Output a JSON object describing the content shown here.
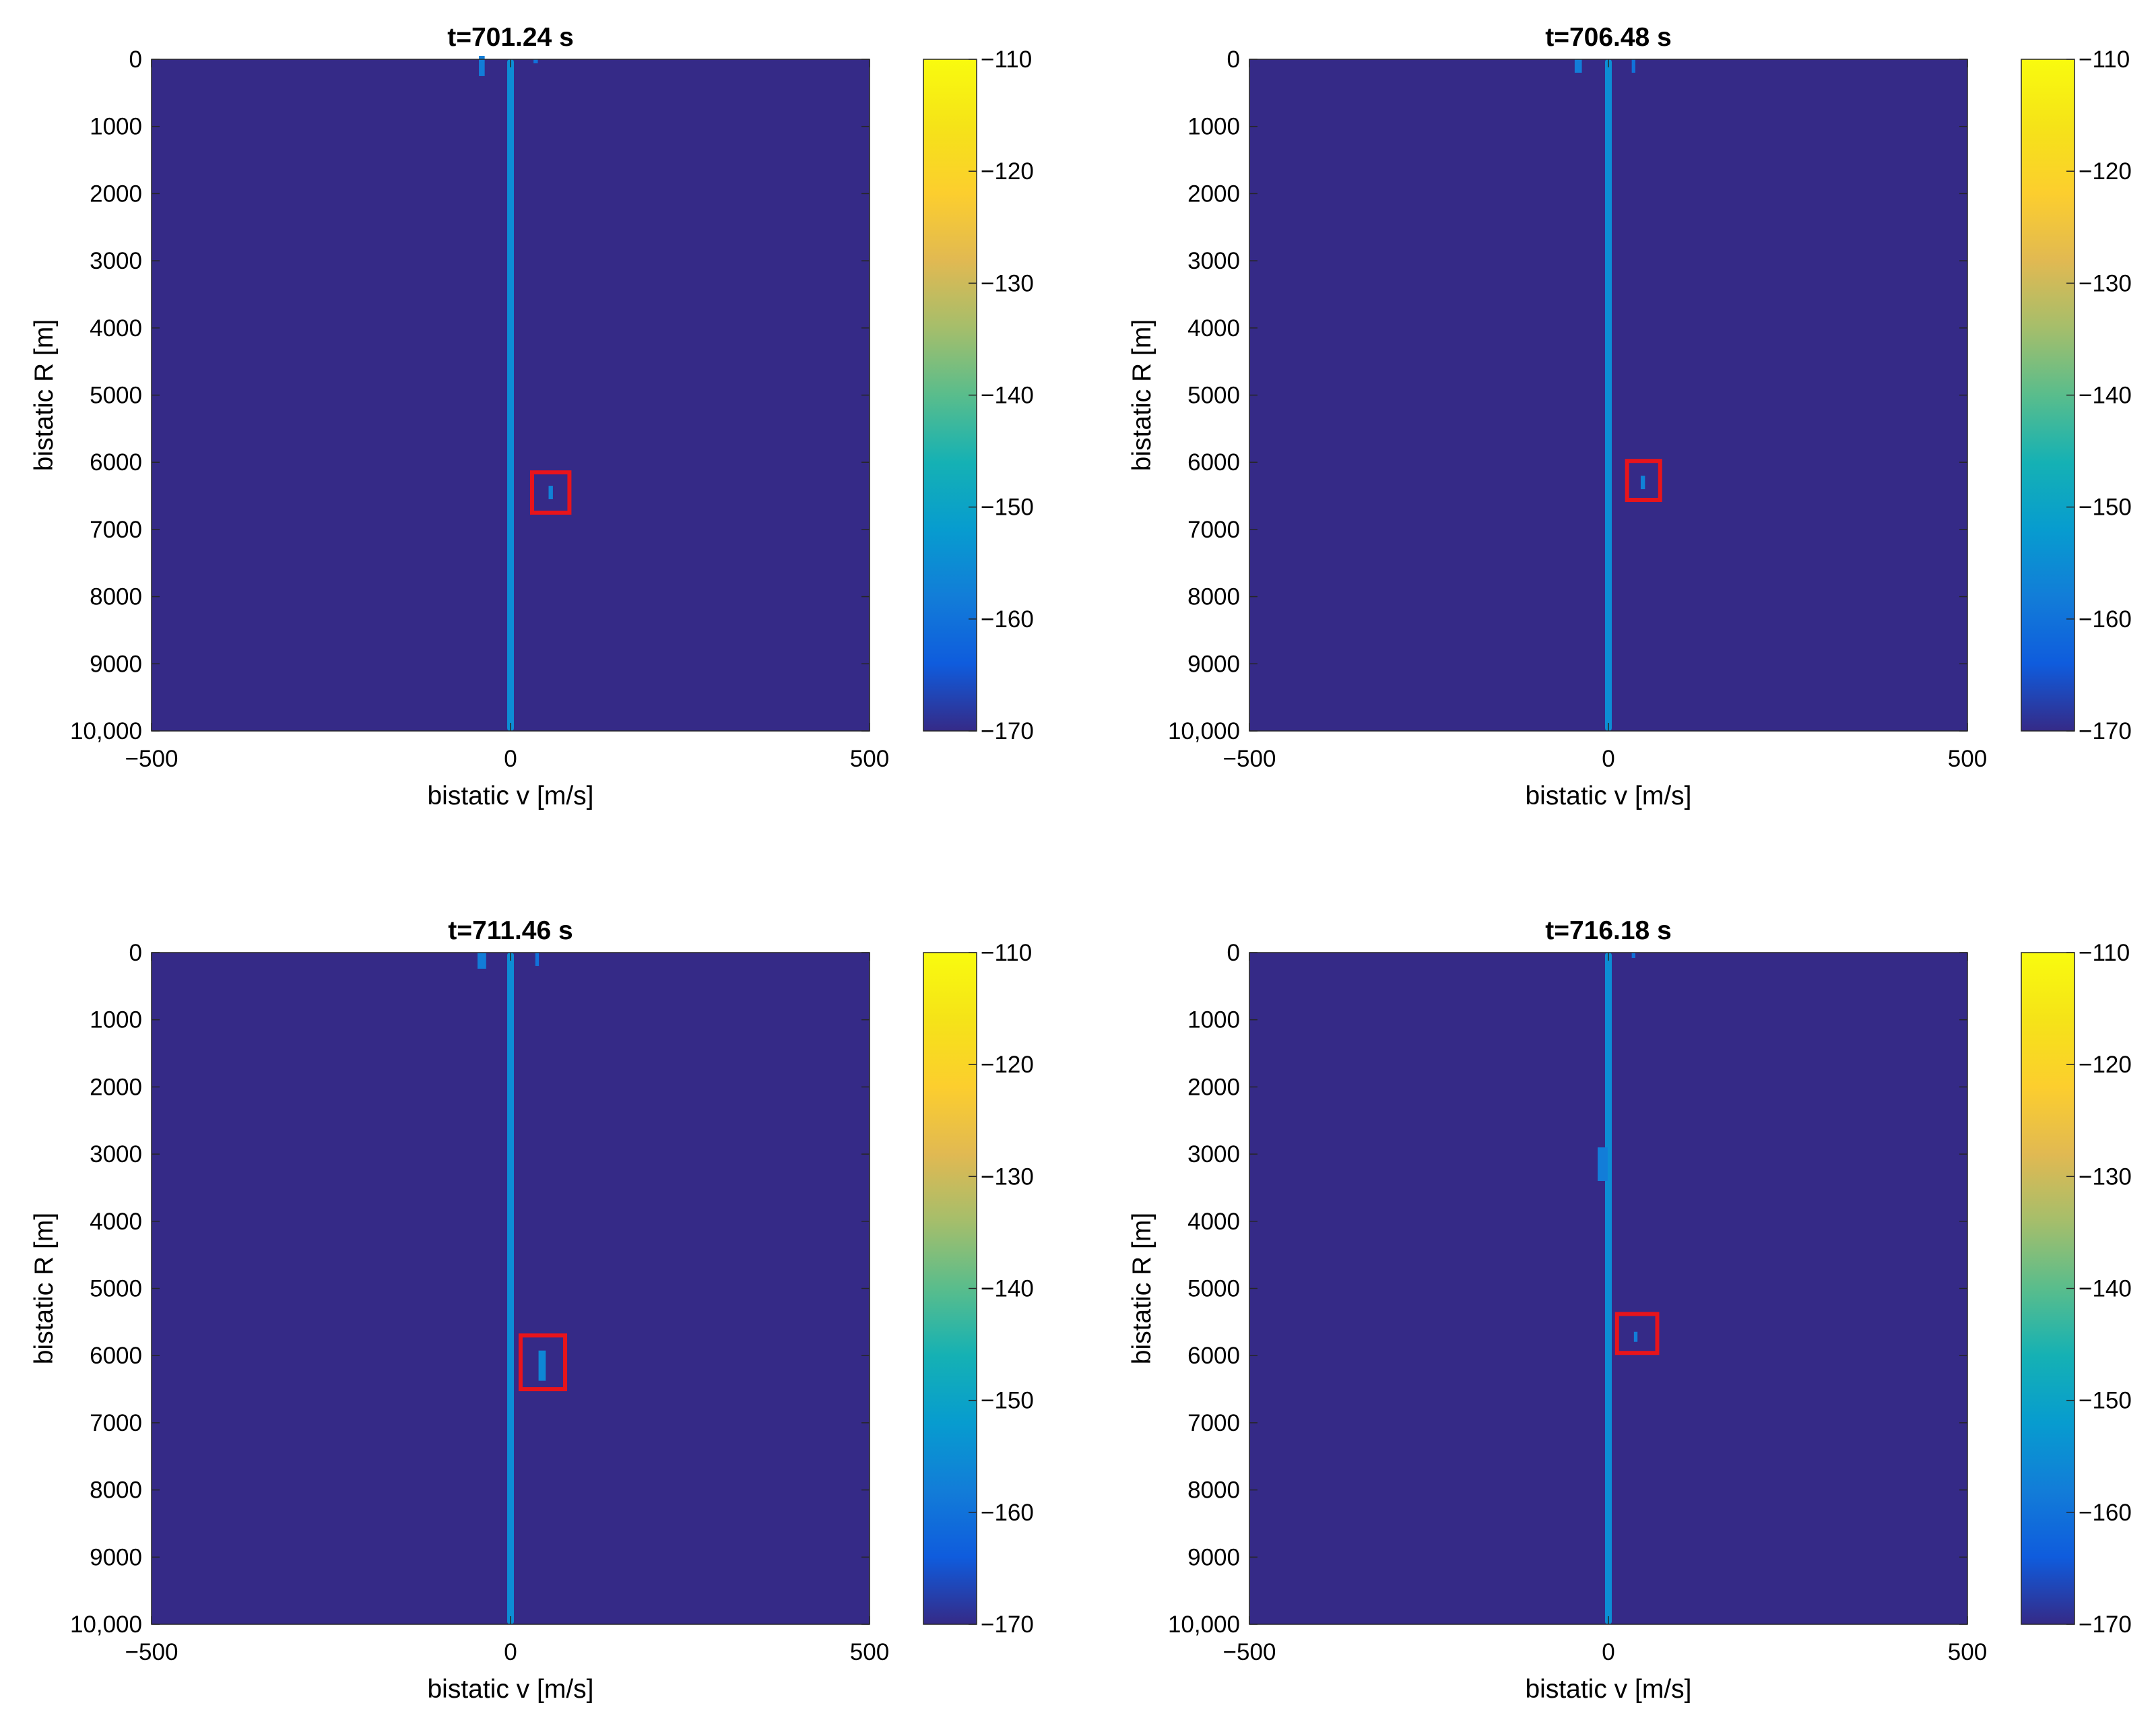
{
  "chart_data": [
    {
      "type": "heatmap",
      "title": "t=701.24 s",
      "xlabel": "bistatic v [m/s]",
      "ylabel": "bistatic R [m]",
      "xlim": [
        -500,
        500
      ],
      "ylim": [
        0,
        10000
      ],
      "y_reversed": true,
      "xticks": [
        -500,
        0,
        500
      ],
      "xtick_labels": [
        "−500",
        "0",
        "500"
      ],
      "yticks": [
        0,
        1000,
        2000,
        3000,
        4000,
        5000,
        6000,
        7000,
        8000,
        9000,
        10000
      ],
      "ytick_labels": [
        "0",
        "1000",
        "2000",
        "3000",
        "4000",
        "5000",
        "6000",
        "7000",
        "8000",
        "9000",
        "10,000"
      ],
      "colorbar": {
        "limits": [
          -170,
          -110
        ],
        "ticks": [
          -110,
          -120,
          -130,
          -140,
          -150,
          -160,
          -170
        ],
        "tick_labels": [
          "−110",
          "−120",
          "−130",
          "−140",
          "−150",
          "−160",
          "−170"
        ]
      },
      "background_level": -170,
      "clutter_ridge": {
        "v": 0,
        "r_range": [
          0,
          10000
        ],
        "level": -155
      },
      "features": [
        {
          "v": -40,
          "r": 100,
          "dr": 300,
          "dv": 8,
          "level": -158
        },
        {
          "v": 35,
          "r": 30,
          "dr": 60,
          "dv": 6,
          "level": -160
        }
      ],
      "target": {
        "v": 56,
        "r": 6450,
        "dv": 6,
        "dr": 200,
        "level": -157
      },
      "target_box": {
        "v_range": [
          30,
          82
        ],
        "r_range": [
          6150,
          6750
        ],
        "color": "#e8141b"
      }
    },
    {
      "type": "heatmap",
      "title": "t=706.48 s",
      "xlabel": "bistatic v [m/s]",
      "ylabel": "bistatic R [m]",
      "xlim": [
        -500,
        500
      ],
      "ylim": [
        0,
        10000
      ],
      "y_reversed": true,
      "xticks": [
        -500,
        0,
        500
      ],
      "xtick_labels": [
        "−500",
        "0",
        "500"
      ],
      "yticks": [
        0,
        1000,
        2000,
        3000,
        4000,
        5000,
        6000,
        7000,
        8000,
        9000,
        10000
      ],
      "ytick_labels": [
        "0",
        "1000",
        "2000",
        "3000",
        "4000",
        "5000",
        "6000",
        "7000",
        "8000",
        "9000",
        "10,000"
      ],
      "colorbar": {
        "limits": [
          -170,
          -110
        ],
        "ticks": [
          -110,
          -120,
          -130,
          -140,
          -150,
          -160,
          -170
        ],
        "tick_labels": [
          "−110",
          "−120",
          "−130",
          "−140",
          "−150",
          "−160",
          "−170"
        ]
      },
      "background_level": -170,
      "clutter_ridge": {
        "v": 0,
        "r_range": [
          0,
          10000
        ],
        "level": -155
      },
      "features": [
        {
          "v": -42,
          "r": 100,
          "dr": 200,
          "dv": 10,
          "level": -158
        },
        {
          "v": 35,
          "r": 100,
          "dr": 200,
          "dv": 5,
          "level": -160
        }
      ],
      "target": {
        "v": 48,
        "r": 6300,
        "dv": 6,
        "dr": 200,
        "level": -157
      },
      "target_box": {
        "v_range": [
          26,
          72
        ],
        "r_range": [
          5980,
          6560
        ],
        "color": "#e8141b"
      }
    },
    {
      "type": "heatmap",
      "title": "t=711.46 s",
      "xlabel": "bistatic v [m/s]",
      "ylabel": "bistatic R [m]",
      "xlim": [
        -500,
        500
      ],
      "ylim": [
        0,
        10000
      ],
      "y_reversed": true,
      "xticks": [
        -500,
        0,
        500
      ],
      "xtick_labels": [
        "−500",
        "0",
        "500"
      ],
      "yticks": [
        0,
        1000,
        2000,
        3000,
        4000,
        5000,
        6000,
        7000,
        8000,
        9000,
        10000
      ],
      "ytick_labels": [
        "0",
        "1000",
        "2000",
        "3000",
        "4000",
        "5000",
        "6000",
        "7000",
        "8000",
        "9000",
        "10,000"
      ],
      "colorbar": {
        "limits": [
          -170,
          -110
        ],
        "ticks": [
          -110,
          -120,
          -130,
          -140,
          -150,
          -160,
          -170
        ],
        "tick_labels": [
          "−110",
          "−120",
          "−130",
          "−140",
          "−150",
          "−160",
          "−170"
        ]
      },
      "background_level": -170,
      "clutter_ridge": {
        "v": 0,
        "r_range": [
          0,
          10000
        ],
        "level": -155
      },
      "features": [
        {
          "v": -40,
          "r": 120,
          "dr": 240,
          "dv": 12,
          "level": -158
        },
        {
          "v": 37,
          "r": 100,
          "dr": 200,
          "dv": 5,
          "level": -160
        }
      ],
      "target": {
        "v": 44,
        "r": 6150,
        "dv": 10,
        "dr": 450,
        "level": -156
      },
      "target_box": {
        "v_range": [
          14,
          76
        ],
        "r_range": [
          5700,
          6500
        ],
        "color": "#e8141b"
      }
    },
    {
      "type": "heatmap",
      "title": "t=716.18 s",
      "xlabel": "bistatic v [m/s]",
      "ylabel": "bistatic R [m]",
      "xlim": [
        -500,
        500
      ],
      "ylim": [
        0,
        10000
      ],
      "y_reversed": true,
      "xticks": [
        -500,
        0,
        500
      ],
      "xtick_labels": [
        "−500",
        "0",
        "500"
      ],
      "yticks": [
        0,
        1000,
        2000,
        3000,
        4000,
        5000,
        6000,
        7000,
        8000,
        9000,
        10000
      ],
      "ytick_labels": [
        "0",
        "1000",
        "2000",
        "3000",
        "4000",
        "5000",
        "6000",
        "7000",
        "8000",
        "9000",
        "10,000"
      ],
      "colorbar": {
        "limits": [
          -170,
          -110
        ],
        "ticks": [
          -110,
          -120,
          -130,
          -140,
          -150,
          -160,
          -170
        ],
        "tick_labels": [
          "−110",
          "−120",
          "−130",
          "−140",
          "−150",
          "−160",
          "−170"
        ]
      },
      "background_level": -170,
      "clutter_ridge": {
        "v": 0,
        "r_range": [
          0,
          10000
        ],
        "level": -155
      },
      "features": [
        {
          "v": 35,
          "r": 40,
          "dr": 80,
          "dv": 5,
          "level": -160
        },
        {
          "v": -8,
          "r": 3150,
          "dr": 500,
          "dv": 14,
          "level": -158
        }
      ],
      "target": {
        "v": 38,
        "r": 5720,
        "dv": 5,
        "dr": 150,
        "level": -158
      },
      "target_box": {
        "v_range": [
          12,
          68
        ],
        "r_range": [
          5380,
          5960
        ],
        "color": "#e8141b"
      }
    }
  ]
}
